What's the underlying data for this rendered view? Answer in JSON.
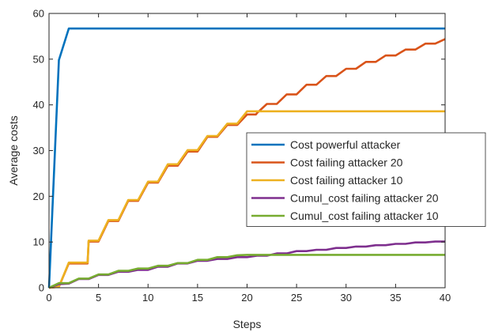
{
  "chart_data": {
    "type": "line",
    "title": "",
    "xlabel": "Steps",
    "ylabel": "Average costs",
    "xlim": [
      0,
      40
    ],
    "ylim": [
      0,
      60
    ],
    "xticks": [
      0,
      5,
      10,
      15,
      20,
      25,
      30,
      35,
      40
    ],
    "yticks": [
      0,
      10,
      20,
      30,
      40,
      50,
      60
    ],
    "grid": false,
    "legend_position": "right",
    "series": [
      {
        "name": "Cost powerful attacker",
        "color": "#0072BD",
        "points": [
          [
            0,
            0
          ],
          [
            1,
            49.8
          ],
          [
            2,
            56.7
          ],
          [
            3,
            56.7
          ],
          [
            40,
            56.7
          ]
        ]
      },
      {
        "name": "Cost failing attacker 20",
        "color": "#D95319",
        "points": [
          [
            0,
            0
          ],
          [
            1,
            0.2
          ],
          [
            2,
            5.3
          ],
          [
            3,
            5.3
          ],
          [
            3.9,
            5.3
          ],
          [
            4,
            10.1
          ],
          [
            4.9,
            10.1
          ],
          [
            5,
            10.1
          ],
          [
            6,
            14.6
          ],
          [
            6.9,
            14.6
          ],
          [
            7,
            14.6
          ],
          [
            8,
            19.0
          ],
          [
            8.9,
            19.0
          ],
          [
            9,
            19.0
          ],
          [
            10,
            23.0
          ],
          [
            10.9,
            23.0
          ],
          [
            11,
            23.0
          ],
          [
            12,
            26.7
          ],
          [
            12.9,
            26.7
          ],
          [
            13,
            26.7
          ],
          [
            14,
            29.8
          ],
          [
            14.9,
            29.8
          ],
          [
            15,
            29.8
          ],
          [
            16,
            33.0
          ],
          [
            16.9,
            33.0
          ],
          [
            17,
            33.0
          ],
          [
            18,
            35.6
          ],
          [
            18.9,
            35.6
          ],
          [
            19,
            35.6
          ],
          [
            20,
            37.9
          ],
          [
            20.9,
            37.9
          ],
          [
            21,
            38.2
          ],
          [
            22,
            40.2
          ],
          [
            22.9,
            40.2
          ],
          [
            23,
            40.2
          ],
          [
            24,
            42.3
          ],
          [
            24.9,
            42.3
          ],
          [
            25,
            42.3
          ],
          [
            26,
            44.4
          ],
          [
            26.9,
            44.4
          ],
          [
            27,
            44.4
          ],
          [
            28,
            46.3
          ],
          [
            28.9,
            46.3
          ],
          [
            29,
            46.3
          ],
          [
            30,
            47.9
          ],
          [
            30.9,
            47.9
          ],
          [
            31,
            47.9
          ],
          [
            32,
            49.4
          ],
          [
            32.9,
            49.4
          ],
          [
            33,
            49.4
          ],
          [
            34,
            50.8
          ],
          [
            34.9,
            50.8
          ],
          [
            35,
            50.8
          ],
          [
            36,
            52.1
          ],
          [
            36.9,
            52.1
          ],
          [
            37,
            52.1
          ],
          [
            38,
            53.4
          ],
          [
            38.9,
            53.4
          ],
          [
            39,
            53.4
          ],
          [
            40,
            54.4
          ]
        ]
      },
      {
        "name": "Cost failing attacker 10",
        "color": "#EDB120",
        "points": [
          [
            0,
            0
          ],
          [
            1,
            0.2
          ],
          [
            2,
            5.5
          ],
          [
            3,
            5.5
          ],
          [
            3.9,
            5.5
          ],
          [
            4,
            10.3
          ],
          [
            4.9,
            10.3
          ],
          [
            5,
            10.3
          ],
          [
            6,
            14.8
          ],
          [
            6.9,
            14.8
          ],
          [
            7,
            14.8
          ],
          [
            8,
            19.2
          ],
          [
            8.9,
            19.2
          ],
          [
            9,
            19.2
          ],
          [
            10,
            23.2
          ],
          [
            10.9,
            23.2
          ],
          [
            11,
            23.2
          ],
          [
            12,
            27.0
          ],
          [
            12.9,
            27.0
          ],
          [
            13,
            27.0
          ],
          [
            14,
            30.1
          ],
          [
            14.9,
            30.1
          ],
          [
            15,
            30.1
          ],
          [
            16,
            33.2
          ],
          [
            16.9,
            33.2
          ],
          [
            17,
            33.2
          ],
          [
            18,
            35.9
          ],
          [
            18.9,
            35.9
          ],
          [
            19,
            35.9
          ],
          [
            20,
            38.6
          ],
          [
            40,
            38.6
          ]
        ]
      },
      {
        "name": "Cumul_cost failing attacker 20",
        "color": "#7E2F8E",
        "points": [
          [
            0,
            0
          ],
          [
            1,
            0.8
          ],
          [
            2,
            0.9
          ],
          [
            3,
            1.9
          ],
          [
            4,
            1.9
          ],
          [
            5,
            2.8
          ],
          [
            6,
            2.8
          ],
          [
            7,
            3.5
          ],
          [
            8,
            3.5
          ],
          [
            9,
            3.9
          ],
          [
            10,
            3.9
          ],
          [
            11,
            4.6
          ],
          [
            12,
            4.6
          ],
          [
            13,
            5.3
          ],
          [
            14,
            5.3
          ],
          [
            15,
            5.9
          ],
          [
            16,
            5.9
          ],
          [
            17,
            6.3
          ],
          [
            18,
            6.3
          ],
          [
            19,
            6.7
          ],
          [
            20,
            6.7
          ],
          [
            21,
            7.0
          ],
          [
            22,
            7.0
          ],
          [
            23,
            7.5
          ],
          [
            24,
            7.5
          ],
          [
            25,
            8.0
          ],
          [
            26,
            8.0
          ],
          [
            27,
            8.3
          ],
          [
            28,
            8.3
          ],
          [
            29,
            8.7
          ],
          [
            30,
            8.7
          ],
          [
            31,
            9.0
          ],
          [
            32,
            9.0
          ],
          [
            33,
            9.3
          ],
          [
            34,
            9.3
          ],
          [
            35,
            9.6
          ],
          [
            36,
            9.6
          ],
          [
            37,
            9.9
          ],
          [
            38,
            9.9
          ],
          [
            39,
            10.1
          ],
          [
            40,
            10.1
          ]
        ]
      },
      {
        "name": "Cumul_cost failing attacker 10",
        "color": "#77AC30",
        "points": [
          [
            0,
            0
          ],
          [
            1,
            1.0
          ],
          [
            2,
            1.0
          ],
          [
            3,
            2.0
          ],
          [
            4,
            2.0
          ],
          [
            5,
            2.9
          ],
          [
            6,
            2.9
          ],
          [
            7,
            3.7
          ],
          [
            8,
            3.7
          ],
          [
            9,
            4.2
          ],
          [
            10,
            4.2
          ],
          [
            11,
            4.8
          ],
          [
            12,
            4.8
          ],
          [
            13,
            5.4
          ],
          [
            14,
            5.4
          ],
          [
            15,
            6.1
          ],
          [
            16,
            6.1
          ],
          [
            17,
            6.7
          ],
          [
            18,
            6.7
          ],
          [
            19,
            7.1
          ],
          [
            20,
            7.2
          ],
          [
            40,
            7.2
          ]
        ]
      }
    ]
  }
}
